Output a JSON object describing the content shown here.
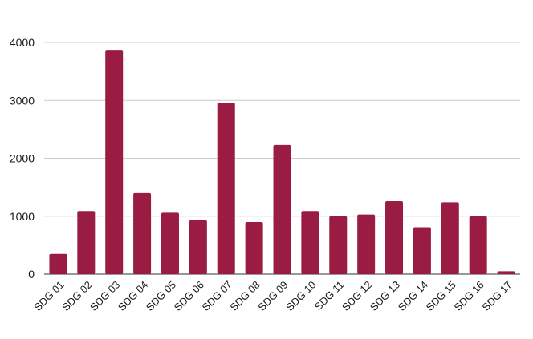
{
  "chart_data": {
    "type": "bar",
    "title": "",
    "xlabel": "",
    "ylabel": "",
    "categories": [
      "SDG 01",
      "SDG 02",
      "SDG 03",
      "SDG 04",
      "SDG 05",
      "SDG 06",
      "SDG 07",
      "SDG 08",
      "SDG 09",
      "SDG 10",
      "SDG 11",
      "SDG 12",
      "SDG 13",
      "SDG 14",
      "SDG 15",
      "SDG 16",
      "SDG 17"
    ],
    "values": [
      350,
      1090,
      3860,
      1400,
      1060,
      930,
      2960,
      900,
      2230,
      1090,
      1000,
      1030,
      1260,
      810,
      1240,
      1000,
      50
    ],
    "ylim": [
      0,
      4000
    ],
    "yticks": [
      0,
      1000,
      2000,
      3000,
      4000
    ],
    "ytick_labels": [
      "0",
      "1000",
      "2000",
      "3000",
      "4000"
    ],
    "grid": true,
    "legend": "none",
    "bar_color": "#9b1c42",
    "grid_color": "#cccccc"
  }
}
